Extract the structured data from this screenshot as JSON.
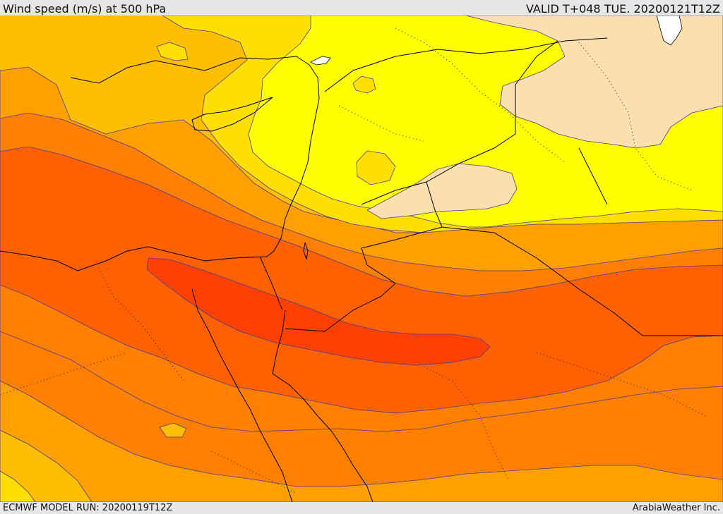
{
  "header": {
    "title": "Wind speed (m/s) at 500 hPa",
    "valid": "VALID T+048 TUE. 20200121T12Z"
  },
  "footer": {
    "model_run": "ECMWF MODEL RUN: 20200119T12Z",
    "credit": "ArabiaWeather Inc."
  },
  "map": {
    "field": "wind-speed-500hPa",
    "colors": {
      "band_pale": "#fcdfae",
      "band_yellow": "#ffff00",
      "band_gold": "#ffdf00",
      "band_amber": "#ffbf00",
      "band_light_orange": "#ff9f00",
      "band_orange": "#ff8000",
      "band_dark_orange": "#ff6000",
      "band_red_orange": "#ff4000",
      "water": "#ffffff",
      "coastline": "#000000",
      "contour": "#4a3c8c"
    }
  }
}
